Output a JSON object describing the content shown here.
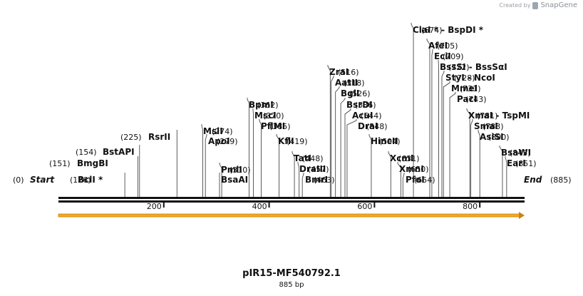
{
  "credit": {
    "prefix": "Created by",
    "brand": "SnapGene"
  },
  "map": {
    "name": "pIR15-MF540792.1",
    "length_label": "885 bp",
    "length": 885,
    "start": {
      "pos": "(0)",
      "label": "Start"
    },
    "end": {
      "pos": "(885)",
      "label": "End"
    },
    "ticks": [
      "200",
      "400",
      "600",
      "800"
    ],
    "feature_color": "#f5a623"
  },
  "sites": [
    {
      "name": "BclI *",
      "pos": "(126)"
    },
    {
      "name": "BmgBI",
      "pos": "(151)"
    },
    {
      "name": "BstAPI",
      "pos": "(154)"
    },
    {
      "name": "RsrII",
      "pos": "(225)"
    },
    {
      "name": "MslI",
      "pos": "(274)"
    },
    {
      "name": "ApoI",
      "pos": "(279)"
    },
    {
      "name": "PmlI",
      "pos": "(310)"
    },
    {
      "name": "BsaAI",
      "pos": ""
    },
    {
      "name": "BpmI",
      "pos": "(362)"
    },
    {
      "name": "MscI",
      "pos": "(370)"
    },
    {
      "name": "PflMI",
      "pos": "(385)"
    },
    {
      "name": "KflI",
      "pos": "(419)"
    },
    {
      "name": "TatI",
      "pos": "(448)"
    },
    {
      "name": "DraIII",
      "pos": "(457)"
    },
    {
      "name": "BmrI",
      "pos": "(463)"
    },
    {
      "name": "ZraI",
      "pos": "(516)"
    },
    {
      "name": "AatII",
      "pos": "(518)"
    },
    {
      "name": "BglI",
      "pos": "(526)"
    },
    {
      "name": "BsrDI",
      "pos": "(536)"
    },
    {
      "name": "AcuI",
      "pos": "(544)"
    },
    {
      "name": "DraI",
      "pos": "(548)"
    },
    {
      "name": "HincII",
      "pos": "(594)"
    },
    {
      "name": "XcmI",
      "pos": "(631)"
    },
    {
      "name": "XmnI",
      "pos": "(650)"
    },
    {
      "name": "PfoI",
      "pos": "(654)"
    },
    {
      "name": "ClaI *  -  BspDI *",
      "pos": "(674)"
    },
    {
      "name": "AfeI",
      "pos": "(705)"
    },
    {
      "name": "EciI",
      "pos": "(709)"
    },
    {
      "name": "BssSI  -  BssSαI",
      "pos": "(722)"
    },
    {
      "name": "StyI  -  NcoI",
      "pos": "(728)"
    },
    {
      "name": "MmeI",
      "pos": "(731)"
    },
    {
      "name": "PacI",
      "pos": "(743)"
    },
    {
      "name": "XmaI  -  TspMI",
      "pos": "(781)"
    },
    {
      "name": "SmaI",
      "pos": "(783)"
    },
    {
      "name": "AsiSI",
      "pos": "(800)"
    },
    {
      "name": "BsaWI",
      "pos": "(843)"
    },
    {
      "name": "EarI",
      "pos": "(851)"
    }
  ]
}
